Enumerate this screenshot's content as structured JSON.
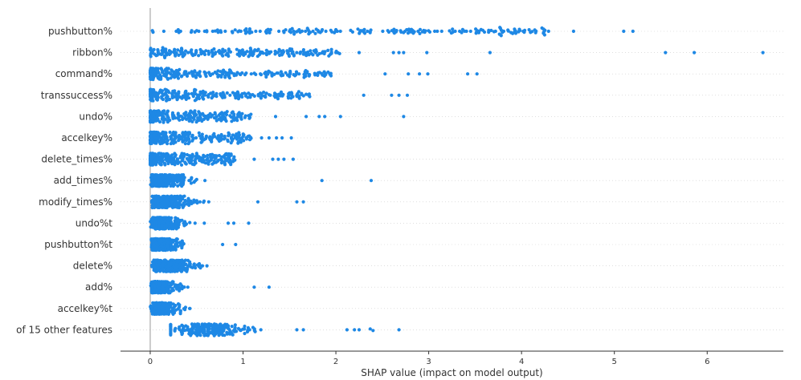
{
  "chart_data": {
    "type": "scatter",
    "subtype": "shap-beeswarm",
    "xlabel": "SHAP value (impact on model output)",
    "xlim": [
      -0.32,
      6.82
    ],
    "x_ticks": [
      0,
      1,
      2,
      3,
      4,
      5,
      6
    ],
    "x_tick_labels": [
      "0",
      "1",
      "2",
      "3",
      "4",
      "5",
      "6"
    ],
    "grid": false,
    "features": [
      {
        "name": "pushbutton%",
        "x_range": [
          0.0,
          4.3
        ],
        "n": 190,
        "shape": "flat",
        "outliers": [
          4.56,
          5.1,
          5.2
        ]
      },
      {
        "name": "ribbon%",
        "x_range": [
          0.0,
          2.05
        ],
        "n": 200,
        "shape": "front",
        "outliers": [
          2.25,
          2.62,
          2.68,
          2.73,
          2.98,
          3.66,
          5.55,
          5.86,
          6.6
        ]
      },
      {
        "name": "command%",
        "x_range": [
          0.0,
          1.95
        ],
        "n": 220,
        "shape": "decay",
        "outliers": [
          2.53,
          2.78,
          2.9,
          2.99,
          3.42,
          3.52
        ]
      },
      {
        "name": "transsuccess%",
        "x_range": [
          0.0,
          1.72
        ],
        "n": 220,
        "shape": "decay",
        "outliers": [
          2.3,
          2.6,
          2.68,
          2.77
        ]
      },
      {
        "name": "undo%",
        "x_range": [
          0.0,
          1.1
        ],
        "n": 210,
        "shape": "decay",
        "outliers": [
          1.35,
          1.68,
          1.82,
          1.88,
          2.05,
          2.73
        ]
      },
      {
        "name": "accelkey%",
        "x_range": [
          0.0,
          1.1
        ],
        "n": 220,
        "shape": "decay",
        "outliers": [
          1.2,
          1.28,
          1.36,
          1.42,
          1.52
        ]
      },
      {
        "name": "delete_times%",
        "x_range": [
          0.0,
          0.92
        ],
        "n": 230,
        "shape": "decay",
        "outliers": [
          1.12,
          1.32,
          1.38,
          1.44,
          1.54
        ]
      },
      {
        "name": "add_times%",
        "x_range": [
          0.0,
          0.8
        ],
        "n": 230,
        "shape": "peak",
        "outliers": [
          1.85,
          2.38
        ]
      },
      {
        "name": "modify_times%",
        "x_range": [
          0.0,
          0.9
        ],
        "n": 230,
        "shape": "peak",
        "outliers": [
          1.16,
          1.58,
          1.65
        ]
      },
      {
        "name": "undo%t",
        "x_range": [
          0.0,
          0.72
        ],
        "n": 230,
        "shape": "peak",
        "outliers": [
          0.84,
          0.9,
          1.06
        ]
      },
      {
        "name": "pushbutton%t",
        "x_range": [
          0.0,
          0.64
        ],
        "n": 230,
        "shape": "peak",
        "outliers": [
          0.78,
          0.92
        ]
      },
      {
        "name": "delete%",
        "x_range": [
          0.0,
          1.0
        ],
        "n": 230,
        "shape": "peak",
        "outliers": []
      },
      {
        "name": "add%",
        "x_range": [
          0.0,
          0.62
        ],
        "n": 220,
        "shape": "peak",
        "outliers": [
          1.12,
          1.28
        ]
      },
      {
        "name": "accelkey%t",
        "x_range": [
          0.0,
          0.6
        ],
        "n": 200,
        "shape": "peak",
        "outliers": []
      },
      {
        "name": "of 15 other features",
        "x_range": [
          0.22,
          1.38
        ],
        "n": 210,
        "shape": "hump",
        "outliers": [
          1.58,
          1.65,
          2.12,
          2.2,
          2.25,
          2.37,
          2.4,
          2.68
        ]
      }
    ]
  },
  "colors": {
    "dot": "#1e88e5",
    "zero_line": "#999999",
    "row_line": "#cccccc",
    "axis": "#333333",
    "text": "#333333"
  }
}
